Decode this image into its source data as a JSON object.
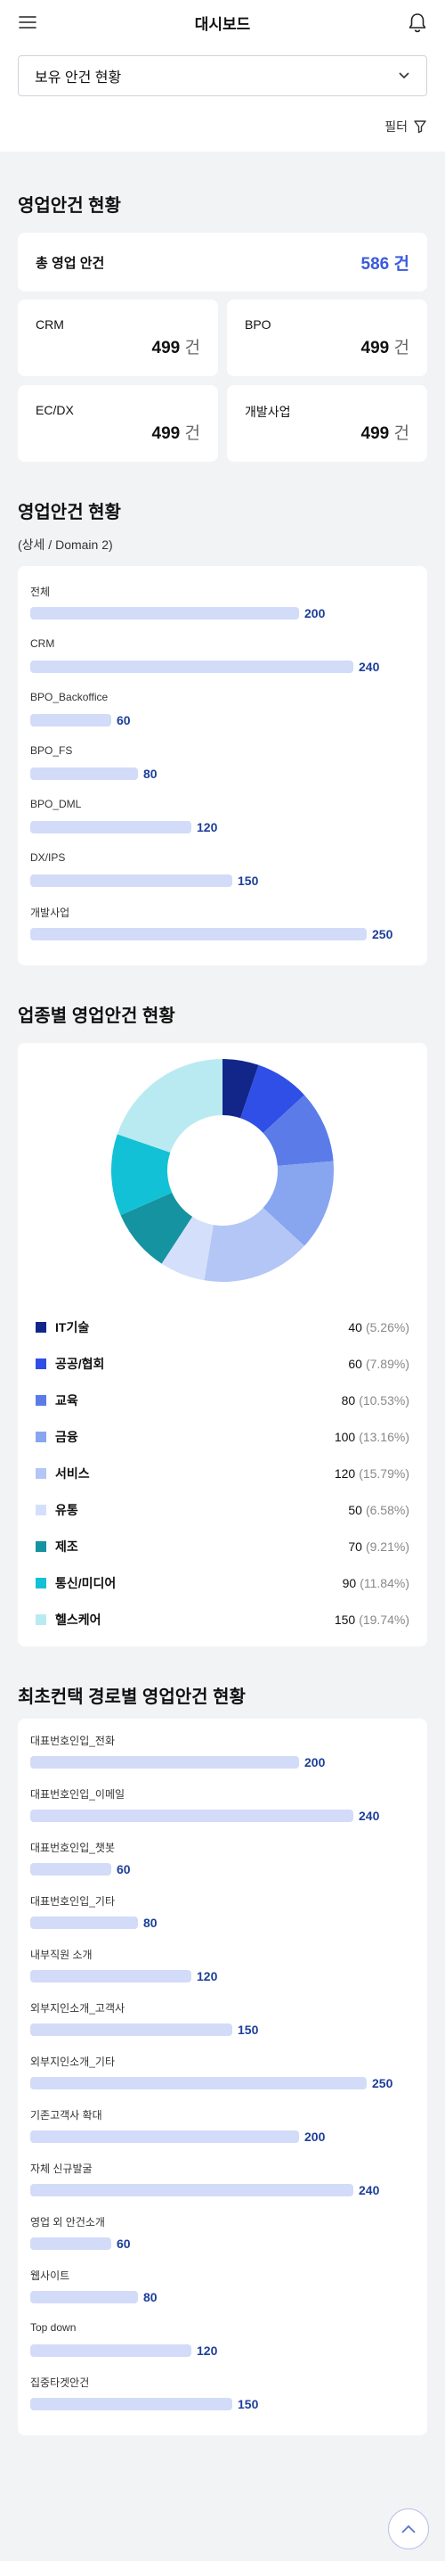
{
  "header": {
    "title": "대시보드",
    "menu_icon": "hamburger-icon",
    "notification_icon": "bell-icon"
  },
  "filter": {
    "selected": "보유 안건 현황",
    "filter_label": "필터"
  },
  "overview": {
    "title": "영업안건 현황",
    "total": {
      "label": "총 영업 안건",
      "value": "586 건"
    },
    "cards": [
      {
        "label": "CRM",
        "value": "499",
        "unit": "건"
      },
      {
        "label": "BPO",
        "value": "499",
        "unit": "건"
      },
      {
        "label": "EC/DX",
        "value": "499",
        "unit": "건"
      },
      {
        "label": "개발사업",
        "value": "499",
        "unit": "건"
      }
    ]
  },
  "domain": {
    "title": "영업안건 현황",
    "subtitle": "(상세 / Domain 2)",
    "max": 250,
    "items": [
      {
        "label": "전체",
        "value": 200
      },
      {
        "label": "CRM",
        "value": 240
      },
      {
        "label": "BPO_Backoffice",
        "value": 60
      },
      {
        "label": "BPO_FS",
        "value": 80
      },
      {
        "label": "BPO_DML",
        "value": 120
      },
      {
        "label": "DX/IPS",
        "value": 150
      },
      {
        "label": "개발사업",
        "value": 250
      }
    ]
  },
  "industry": {
    "title": "업종별 영업안건 현황",
    "items": [
      {
        "label": "IT기술",
        "value": 40,
        "pct": "(5.26%)",
        "color": "#12268a"
      },
      {
        "label": "공공/협회",
        "value": 60,
        "pct": "(7.89%)",
        "color": "#2f4fe6"
      },
      {
        "label": "교육",
        "value": 80,
        "pct": "(10.53%)",
        "color": "#5b7ce8"
      },
      {
        "label": "금융",
        "value": 100,
        "pct": "(13.16%)",
        "color": "#88a5f0"
      },
      {
        "label": "서비스",
        "value": 120,
        "pct": "(15.79%)",
        "color": "#b3c6f6"
      },
      {
        "label": "유통",
        "value": 50,
        "pct": "(6.58%)",
        "color": "#d4e0fb"
      },
      {
        "label": "제조",
        "value": 70,
        "pct": "(9.21%)",
        "color": "#1593a0"
      },
      {
        "label": "통신/미디어",
        "value": 90,
        "pct": "(11.84%)",
        "color": "#13c1d6"
      },
      {
        "label": "헬스케어",
        "value": 150,
        "pct": "(19.74%)",
        "color": "#b9eaf1"
      }
    ]
  },
  "contact": {
    "title": "최초컨택 경로별 영업안건 현황",
    "max": 250,
    "items": [
      {
        "label": "대표번호인입_전화",
        "value": 200
      },
      {
        "label": "대표번호인입_이메일",
        "value": 240
      },
      {
        "label": "대표번호인입_챗봇",
        "value": 60
      },
      {
        "label": "대표번호인입_기타",
        "value": 80
      },
      {
        "label": "내부직원 소개",
        "value": 120
      },
      {
        "label": "외부지인소개_고객사",
        "value": 150
      },
      {
        "label": "외부지인소개_기타",
        "value": 250
      },
      {
        "label": "기존고객사 확대",
        "value": 200
      },
      {
        "label": "자체 신규발굴",
        "value": 240
      },
      {
        "label": "영업 외 안건소개",
        "value": 60
      },
      {
        "label": "웹사이트",
        "value": 80
      },
      {
        "label": "Top down",
        "value": 120
      },
      {
        "label": "집중타겟안건",
        "value": 150
      }
    ]
  },
  "chart_data": {
    "type": "pie",
    "title": "업종별 영업안건 현황",
    "categories": [
      "IT기술",
      "공공/협회",
      "교육",
      "금융",
      "서비스",
      "유통",
      "제조",
      "통신/미디어",
      "헬스케어"
    ],
    "values": [
      40,
      60,
      80,
      100,
      120,
      50,
      70,
      90,
      150
    ],
    "donut": true
  },
  "scroll_top_icon": "chevron-up-icon"
}
